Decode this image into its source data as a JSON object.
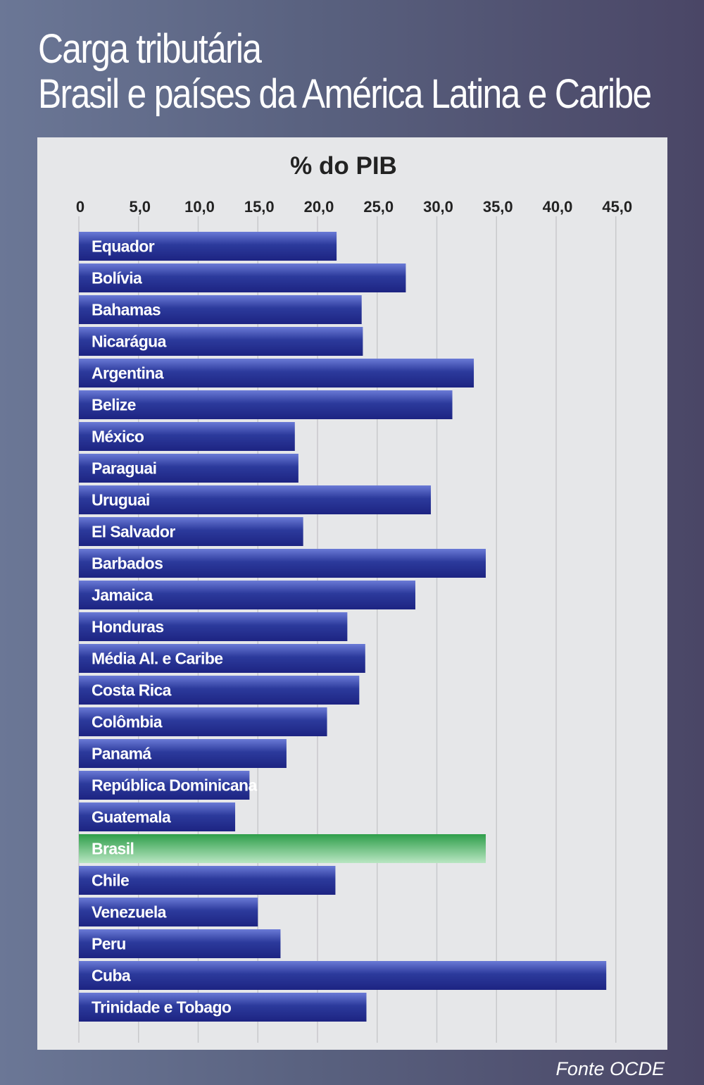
{
  "header": {
    "title_line1": "Carga tributária",
    "title_line2": "Brasil e países da América Latina e Caribe"
  },
  "footer": {
    "source": "Fonte OCDE"
  },
  "colors": {
    "bar_top": "#6a7ad6",
    "bar_mid": "#2c3a9c",
    "bar_bottom": "#1d2482",
    "highlight_top": "#2e9e4a",
    "highlight_bottom": "#b9e6c2",
    "grid": "#c8c9cc"
  },
  "chart_data": {
    "type": "bar",
    "orientation": "horizontal",
    "title": "% do PIB",
    "xlim": [
      0,
      45
    ],
    "ticks": [
      0,
      5,
      10,
      15,
      20,
      25,
      30,
      35,
      40,
      45
    ],
    "tick_labels": [
      "0",
      "5,0",
      "10,0",
      "15,0",
      "20,0",
      "25,0",
      "30,0",
      "35,0",
      "40,0",
      "45,0"
    ],
    "grid": true,
    "highlight": "Brasil",
    "categories": [
      "Equador",
      "Bolívia",
      "Bahamas",
      "Nicarágua",
      "Argentina",
      "Belize",
      "México",
      "Paraguai",
      "Uruguai",
      "El Salvador",
      "Barbados",
      "Jamaica",
      "Honduras",
      "Média Al. e Caribe",
      "Costa Rica",
      "Colômbia",
      "Panamá",
      "República Dominicana",
      "Guatemala",
      "Brasil",
      "Chile",
      "Venezuela",
      "Peru",
      "Cuba",
      "Trinidade e Tobago"
    ],
    "values": [
      21.6,
      27.4,
      23.7,
      23.8,
      33.1,
      31.3,
      18.1,
      18.4,
      29.5,
      18.8,
      34.1,
      28.2,
      22.5,
      24.0,
      23.5,
      20.8,
      17.4,
      14.3,
      13.1,
      34.1,
      21.5,
      15.0,
      16.9,
      44.2,
      24.1
    ]
  }
}
